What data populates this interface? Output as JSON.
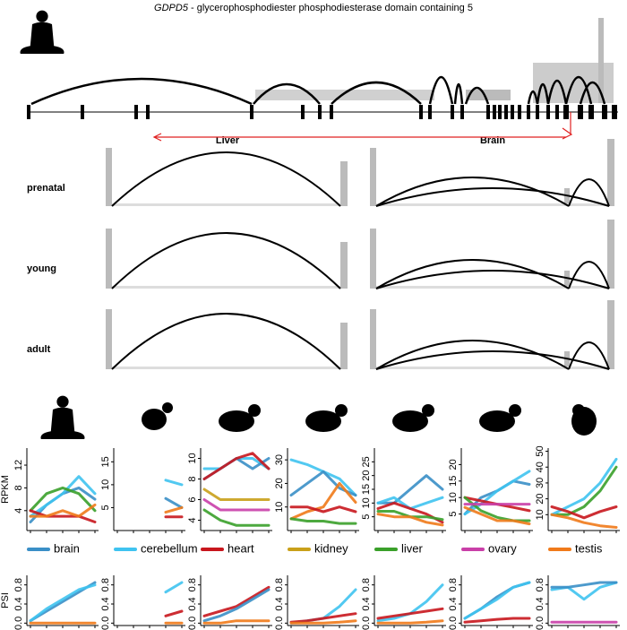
{
  "header": {
    "gene": "GDPD5",
    "title": " - glycerophosphodiester phosphodiesterase domain containing 5"
  },
  "sashimi": {
    "columns": [
      "Liver",
      "Brain"
    ],
    "rows": [
      "prenatal",
      "young",
      "adult"
    ]
  },
  "legend": [
    {
      "name": "brain",
      "color": "#3a8fc7"
    },
    {
      "name": "cerebellum",
      "color": "#3fc3f0"
    },
    {
      "name": "heart",
      "color": "#c8161d"
    },
    {
      "name": "kidney",
      "color": "#c9a019"
    },
    {
      "name": "liver",
      "color": "#3aa02a"
    },
    {
      "name": "ovary",
      "color": "#c93fa8"
    },
    {
      "name": "testis",
      "color": "#f07a1a"
    }
  ],
  "chart_data": [
    {
      "type": "line",
      "ylabel": "RPKM",
      "categories": [
        null,
        null,
        null,
        null,
        null
      ],
      "ylim": [
        0.5,
        15
      ],
      "yticks": [
        4,
        8,
        12
      ],
      "series": [
        {
          "name": "brain",
          "color": "#3a8fc7",
          "values": [
            2,
            5,
            7,
            8,
            6
          ]
        },
        {
          "name": "cerebellum",
          "color": "#3fc3f0",
          "values": [
            3,
            5,
            7,
            10,
            7
          ]
        },
        {
          "name": "liver",
          "color": "#3aa02a",
          "values": [
            4,
            7,
            8,
            7,
            4
          ]
        },
        {
          "name": "heart",
          "color": "#c8161d",
          "values": [
            4,
            3,
            3,
            3,
            2
          ]
        },
        {
          "name": "testis",
          "color": "#f07a1a",
          "values": [
            3,
            3,
            4,
            3,
            5
          ]
        }
      ]
    },
    {
      "type": "line",
      "categories": [
        null,
        null,
        null,
        null,
        null
      ],
      "ylim": [
        0,
        18
      ],
      "yticks": [
        5,
        10,
        15
      ],
      "series": [
        {
          "name": "cerebellum",
          "color": "#3fc3f0",
          "values": [
            null,
            null,
            null,
            11,
            10
          ]
        },
        {
          "name": "brain",
          "color": "#3a8fc7",
          "values": [
            null,
            null,
            null,
            7,
            5
          ]
        },
        {
          "name": "heart",
          "color": "#c8161d",
          "values": [
            null,
            null,
            null,
            3,
            3
          ]
        },
        {
          "name": "testis",
          "color": "#f07a1a",
          "values": [
            null,
            null,
            null,
            4,
            5
          ]
        }
      ]
    },
    {
      "type": "line",
      "categories": [
        null,
        null,
        null,
        null,
        null
      ],
      "ylim": [
        3,
        11
      ],
      "yticks": [
        4,
        6,
        8,
        10
      ],
      "series": [
        {
          "name": "cerebellum",
          "color": "#3fc3f0",
          "values": [
            9,
            9,
            10,
            10,
            9
          ]
        },
        {
          "name": "brain",
          "color": "#3a8fc7",
          "values": [
            8,
            9,
            10,
            9,
            10
          ]
        },
        {
          "name": "heart",
          "color": "#c8161d",
          "values": [
            8,
            9,
            10,
            10.5,
            9
          ]
        },
        {
          "name": "kidney",
          "color": "#c9a019",
          "values": [
            7,
            6,
            6,
            6,
            6
          ]
        },
        {
          "name": "ovary",
          "color": "#c93fa8",
          "values": [
            6,
            5,
            5,
            5,
            5
          ]
        },
        {
          "name": "liver",
          "color": "#3aa02a",
          "values": [
            5,
            4,
            3.5,
            3.5,
            3.5
          ]
        }
      ]
    },
    {
      "type": "line",
      "categories": [
        null,
        null,
        null,
        null,
        null
      ],
      "ylim": [
        0,
        35
      ],
      "yticks": [
        10,
        20,
        30
      ],
      "series": [
        {
          "name": "cerebellum",
          "color": "#3fc3f0",
          "values": [
            30,
            28,
            25,
            22,
            15
          ]
        },
        {
          "name": "brain",
          "color": "#3a8fc7",
          "values": [
            15,
            20,
            25,
            18,
            15
          ]
        },
        {
          "name": "testis",
          "color": "#f07a1a",
          "values": [
            5,
            8,
            10,
            20,
            12
          ]
        },
        {
          "name": "heart",
          "color": "#c8161d",
          "values": [
            10,
            10,
            8,
            10,
            8
          ]
        },
        {
          "name": "liver",
          "color": "#3aa02a",
          "values": [
            5,
            4,
            4,
            3,
            3
          ]
        }
      ]
    },
    {
      "type": "line",
      "categories": [
        null,
        null,
        null,
        null,
        null
      ],
      "ylim": [
        0,
        30
      ],
      "yticks": [
        5,
        10,
        15,
        20,
        25
      ],
      "series": [
        {
          "name": "brain",
          "color": "#3a8fc7",
          "values": [
            10,
            10,
            15,
            20,
            15
          ]
        },
        {
          "name": "cerebellum",
          "color": "#3fc3f0",
          "values": [
            10,
            12,
            8,
            10,
            12
          ]
        },
        {
          "name": "heart",
          "color": "#c8161d",
          "values": [
            8,
            10,
            8,
            6,
            3
          ]
        },
        {
          "name": "liver",
          "color": "#3aa02a",
          "values": [
            7,
            7,
            5,
            5,
            4
          ]
        },
        {
          "name": "testis",
          "color": "#f07a1a",
          "values": [
            6,
            5,
            5,
            3,
            2
          ]
        }
      ]
    },
    {
      "type": "line",
      "categories": [
        null,
        null,
        null,
        null,
        null
      ],
      "ylim": [
        0,
        25
      ],
      "yticks": [
        5,
        10,
        15,
        20
      ],
      "series": [
        {
          "name": "brain",
          "color": "#3a8fc7",
          "values": [
            5,
            10,
            12,
            15,
            14
          ]
        },
        {
          "name": "cerebellum",
          "color": "#3fc3f0",
          "values": [
            5,
            8,
            12,
            15,
            18
          ]
        },
        {
          "name": "heart",
          "color": "#c8161d",
          "values": [
            10,
            9,
            8,
            7,
            6
          ]
        },
        {
          "name": "liver",
          "color": "#3aa02a",
          "values": [
            10,
            6,
            4,
            3,
            3
          ]
        },
        {
          "name": "ovary",
          "color": "#c93fa8",
          "values": [
            8,
            8,
            8,
            8,
            8
          ]
        },
        {
          "name": "testis",
          "color": "#f07a1a",
          "values": [
            7,
            5,
            3,
            3,
            2
          ]
        }
      ]
    },
    {
      "type": "line",
      "categories": [
        null,
        null,
        null,
        null,
        null
      ],
      "ylim": [
        0,
        52
      ],
      "yticks": [
        10,
        20,
        30,
        40,
        50
      ],
      "series": [
        {
          "name": "liver",
          "color": "#3aa02a",
          "values": [
            10,
            10,
            15,
            25,
            40
          ]
        },
        {
          "name": "cerebellum",
          "color": "#3fc3f0",
          "values": [
            10,
            15,
            20,
            30,
            45
          ]
        },
        {
          "name": "heart",
          "color": "#c8161d",
          "values": [
            15,
            12,
            8,
            12,
            15
          ]
        },
        {
          "name": "testis",
          "color": "#f07a1a",
          "values": [
            10,
            8,
            5,
            3,
            2
          ]
        }
      ]
    },
    {
      "type": "line",
      "ylabel": "PSI",
      "categories": [
        null,
        null,
        null,
        null,
        null
      ],
      "ylim": [
        -0.05,
        1
      ],
      "yticks": [
        {
          "value": 0,
          "label": "0.0"
        },
        0.4,
        0.8
      ],
      "series": [
        {
          "name": "brain",
          "color": "#3a8fc7",
          "values": [
            0.05,
            0.25,
            0.45,
            0.65,
            0.85
          ]
        },
        {
          "name": "cerebellum",
          "color": "#3fc3f0",
          "values": [
            0.05,
            0.3,
            0.5,
            0.7,
            0.8
          ]
        },
        {
          "name": "testis",
          "color": "#f07a1a",
          "values": [
            0,
            0,
            0,
            0,
            0
          ]
        }
      ]
    },
    {
      "type": "line",
      "categories": [
        null,
        null,
        null,
        null,
        null
      ],
      "ylim": [
        -0.05,
        1
      ],
      "yticks": [
        {
          "value": 0,
          "label": "0.0"
        },
        0.4,
        0.8
      ],
      "series": [
        {
          "name": "cerebellum",
          "color": "#3fc3f0",
          "values": [
            null,
            null,
            null,
            0.65,
            0.85
          ]
        },
        {
          "name": "heart",
          "color": "#c8161d",
          "values": [
            null,
            null,
            null,
            0.15,
            0.25
          ]
        },
        {
          "name": "testis",
          "color": "#f07a1a",
          "values": [
            null,
            null,
            null,
            0,
            0
          ]
        }
      ]
    },
    {
      "type": "line",
      "categories": [
        null,
        null,
        null,
        null,
        null
      ],
      "ylim": [
        -0.05,
        1
      ],
      "yticks": [
        {
          "value": 0,
          "label": "0.0"
        },
        0.4,
        0.8
      ],
      "series": [
        {
          "name": "heart",
          "color": "#c8161d",
          "values": [
            0.15,
            0.25,
            0.35,
            0.55,
            0.75
          ]
        },
        {
          "name": "brain",
          "color": "#3a8fc7",
          "values": [
            0.05,
            0.15,
            0.3,
            0.5,
            0.7
          ]
        },
        {
          "name": "testis",
          "color": "#f07a1a",
          "values": [
            0,
            0,
            0.05,
            0.05,
            0.05
          ]
        }
      ]
    },
    {
      "type": "line",
      "categories": [
        null,
        null,
        null,
        null,
        null
      ],
      "ylim": [
        -0.05,
        1
      ],
      "yticks": [
        {
          "value": 0,
          "label": "0.0"
        },
        0.4,
        0.8
      ],
      "series": [
        {
          "name": "cerebellum",
          "color": "#3fc3f0",
          "values": [
            0,
            0.05,
            0.1,
            0.35,
            0.7
          ]
        },
        {
          "name": "heart",
          "color": "#c8161d",
          "values": [
            0.02,
            0.05,
            0.1,
            0.15,
            0.2
          ]
        },
        {
          "name": "testis",
          "color": "#f07a1a",
          "values": [
            0,
            0,
            0,
            0.02,
            0.05
          ]
        }
      ]
    },
    {
      "type": "line",
      "categories": [
        null,
        null,
        null,
        null,
        null
      ],
      "ylim": [
        -0.05,
        1
      ],
      "yticks": [
        {
          "value": 0,
          "label": "0.0"
        },
        0.4,
        0.8
      ],
      "series": [
        {
          "name": "cerebellum",
          "color": "#3fc3f0",
          "values": [
            0.05,
            0.1,
            0.2,
            0.45,
            0.8
          ]
        },
        {
          "name": "heart",
          "color": "#c8161d",
          "values": [
            0.1,
            0.15,
            0.2,
            0.25,
            0.3
          ]
        },
        {
          "name": "testis",
          "color": "#f07a1a",
          "values": [
            0,
            0,
            0,
            0.02,
            0.05
          ]
        }
      ]
    },
    {
      "type": "line",
      "categories": [
        null,
        null,
        null,
        null,
        null
      ],
      "ylim": [
        -0.05,
        1
      ],
      "yticks": [
        {
          "value": 0,
          "label": "0.0"
        },
        0.4,
        0.8
      ],
      "series": [
        {
          "name": "brain",
          "color": "#3a8fc7",
          "values": [
            0.1,
            0.3,
            0.55,
            0.75,
            0.85
          ]
        },
        {
          "name": "cerebellum",
          "color": "#3fc3f0",
          "values": [
            0.1,
            0.3,
            0.5,
            0.75,
            0.85
          ]
        },
        {
          "name": "heart",
          "color": "#c8161d",
          "values": [
            0.02,
            0.05,
            0.08,
            0.1,
            0.1
          ]
        }
      ]
    },
    {
      "type": "line",
      "categories": [
        null,
        null,
        null,
        null,
        null
      ],
      "ylim": [
        -0.05,
        1
      ],
      "yticks": [
        {
          "value": 0,
          "label": "0.0"
        },
        0.4,
        0.8
      ],
      "series": [
        {
          "name": "cerebellum",
          "color": "#3fc3f0",
          "values": [
            0.7,
            0.75,
            0.5,
            0.75,
            0.85
          ]
        },
        {
          "name": "brain",
          "color": "#3a8fc7",
          "values": [
            0.75,
            0.75,
            0.8,
            0.85,
            0.85
          ]
        },
        {
          "name": "ovary",
          "color": "#c93fa8",
          "values": [
            0.02,
            0.02,
            0.02,
            0.02,
            0.02
          ]
        }
      ]
    }
  ]
}
